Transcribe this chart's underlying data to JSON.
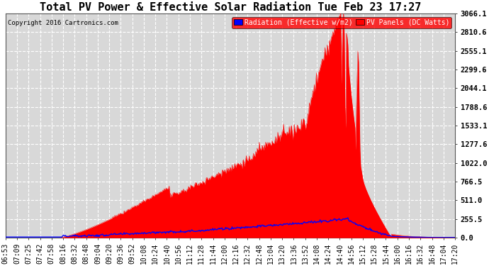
{
  "title": "Total PV Power & Effective Solar Radiation Tue Feb 23 17:27",
  "copyright_text": "Copyright 2016 Cartronics.com",
  "legend_labels": [
    "Radiation (Effective w/m2)",
    "PV Panels (DC Watts)"
  ],
  "yticks": [
    0.0,
    255.5,
    511.0,
    766.5,
    1022.0,
    1277.6,
    1533.1,
    1788.6,
    2044.1,
    2299.6,
    2555.1,
    2810.6,
    3066.1
  ],
  "ymax": 3066.1,
  "bg_color": "#ffffff",
  "plot_bg_color": "#d8d8d8",
  "grid_color": "#ffffff",
  "title_fontsize": 11,
  "x_label_fontsize": 7,
  "xtick_labels": [
    "06:53",
    "07:09",
    "07:25",
    "07:42",
    "07:58",
    "08:16",
    "08:32",
    "08:48",
    "09:04",
    "09:20",
    "09:36",
    "09:52",
    "10:08",
    "10:24",
    "10:40",
    "10:56",
    "11:12",
    "11:28",
    "11:44",
    "12:00",
    "12:16",
    "12:32",
    "12:48",
    "13:04",
    "13:20",
    "13:36",
    "13:52",
    "14:08",
    "14:24",
    "14:40",
    "14:56",
    "15:12",
    "15:28",
    "15:44",
    "16:00",
    "16:16",
    "16:32",
    "16:48",
    "17:04",
    "17:20"
  ]
}
